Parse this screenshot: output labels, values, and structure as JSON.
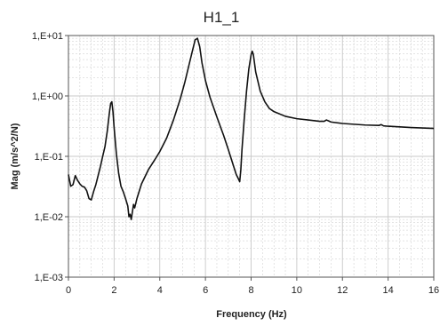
{
  "chart_data": {
    "type": "line",
    "title": "H1_1",
    "xlabel": "Frequency (Hz)",
    "ylabel": "Mag (m/s^2/N)",
    "xlim": [
      0,
      16
    ],
    "ylim": [
      0.001,
      10
    ],
    "y_scale": "log",
    "grid": true,
    "legend": "none",
    "x_ticks": [
      0,
      2,
      4,
      6,
      8,
      10,
      12,
      14,
      16
    ],
    "x_tick_labels": [
      "0",
      "2",
      "4",
      "6",
      "8",
      "10",
      "12",
      "14",
      "16"
    ],
    "y_ticks": [
      0.001,
      0.01,
      0.1,
      1,
      10
    ],
    "y_tick_labels": [
      "1,E-03",
      "1,E-02",
      "1,E-01",
      "1,E+00",
      "1,E+01"
    ],
    "colors": {
      "line": "#111111",
      "grid": "#c8c8c8",
      "axis": "#555555"
    },
    "series": [
      {
        "x": [
          0.0,
          0.1,
          0.2,
          0.3,
          0.4,
          0.5,
          0.6,
          0.7,
          0.8,
          0.9,
          1.0,
          1.1,
          1.2,
          1.3,
          1.4,
          1.5,
          1.6,
          1.7,
          1.75,
          1.8,
          1.85,
          1.9,
          1.95,
          2.0,
          2.1,
          2.2,
          2.3,
          2.4,
          2.5,
          2.6,
          2.65,
          2.7,
          2.75,
          2.8,
          2.85,
          2.9,
          3.0,
          3.2,
          3.5,
          3.8,
          4.0,
          4.3,
          4.6,
          4.9,
          5.1,
          5.3,
          5.45,
          5.55,
          5.65,
          5.75,
          5.85,
          6.0,
          6.2,
          6.5,
          6.8,
          7.0,
          7.2,
          7.35,
          7.45,
          7.5,
          7.55,
          7.6,
          7.7,
          7.8,
          7.9,
          8.0,
          8.05,
          8.1,
          8.2,
          8.4,
          8.6,
          8.8,
          9.0,
          9.5,
          10.0,
          10.5,
          11.0,
          11.2,
          11.3,
          11.5,
          12.0,
          13.0,
          13.6,
          13.7,
          13.8,
          14.0,
          15.0,
          16.0
        ],
        "y": [
          0.05,
          0.032,
          0.034,
          0.048,
          0.04,
          0.035,
          0.032,
          0.031,
          0.027,
          0.02,
          0.019,
          0.026,
          0.034,
          0.048,
          0.068,
          0.1,
          0.145,
          0.26,
          0.38,
          0.55,
          0.75,
          0.8,
          0.55,
          0.3,
          0.11,
          0.052,
          0.032,
          0.026,
          0.02,
          0.015,
          0.01,
          0.011,
          0.009,
          0.012,
          0.016,
          0.014,
          0.02,
          0.035,
          0.06,
          0.09,
          0.12,
          0.2,
          0.4,
          0.9,
          1.7,
          3.5,
          6.0,
          8.5,
          9.0,
          6.5,
          3.5,
          1.8,
          0.95,
          0.45,
          0.22,
          0.13,
          0.075,
          0.05,
          0.042,
          0.038,
          0.06,
          0.13,
          0.42,
          1.2,
          2.8,
          4.8,
          5.5,
          4.8,
          2.5,
          1.2,
          0.8,
          0.62,
          0.55,
          0.46,
          0.42,
          0.4,
          0.38,
          0.38,
          0.4,
          0.37,
          0.35,
          0.33,
          0.325,
          0.335,
          0.32,
          0.315,
          0.3,
          0.29
        ]
      }
    ]
  }
}
